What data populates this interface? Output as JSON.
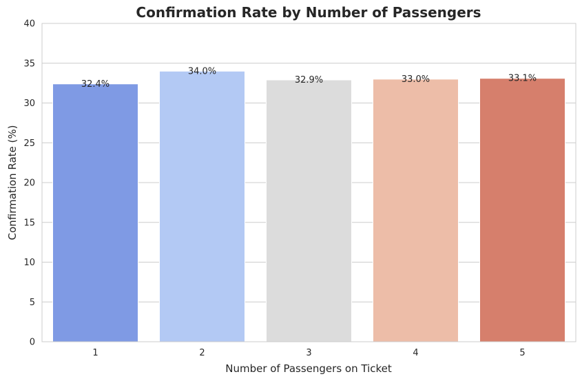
{
  "chart_data": {
    "type": "bar",
    "title": "Confirmation Rate by Number of Passengers",
    "xlabel": "Number of Passengers on Ticket",
    "ylabel": "Confirmation Rate (%)",
    "categories": [
      "1",
      "2",
      "3",
      "4",
      "5"
    ],
    "values": [
      32.4,
      34.0,
      32.9,
      33.0,
      33.1
    ],
    "value_labels": [
      "32.4%",
      "34.0%",
      "32.9%",
      "33.0%",
      "33.1%"
    ],
    "colors": [
      "#7f9ae4",
      "#b3c9f4",
      "#dcdcdc",
      "#edbda8",
      "#d67f6c"
    ],
    "ylim": [
      0,
      40
    ],
    "yticks": [
      "0",
      "5",
      "10",
      "15",
      "20",
      "25",
      "30",
      "35",
      "40"
    ],
    "grid": "horizontal",
    "legend": "none"
  }
}
